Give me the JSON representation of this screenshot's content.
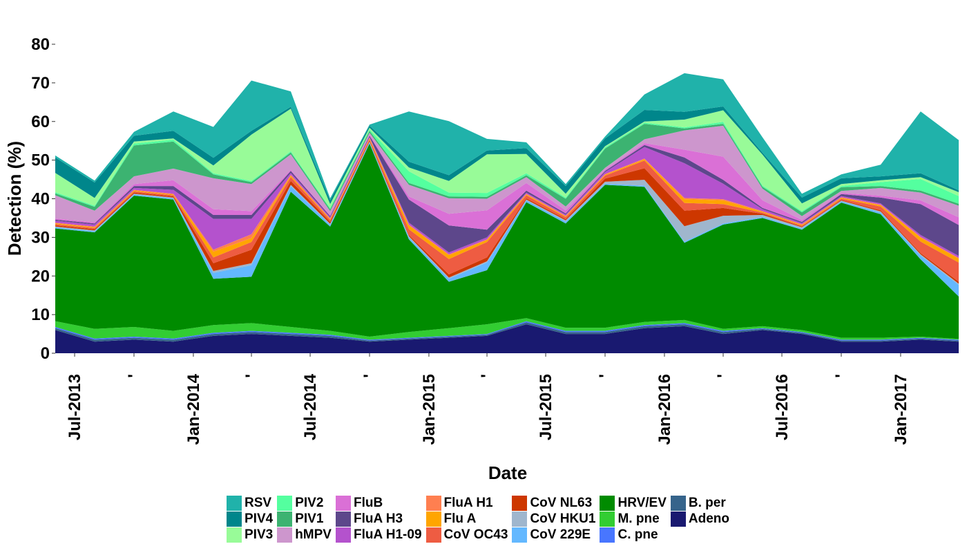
{
  "chart_data": {
    "type": "area",
    "stacked": true,
    "xlabel": "Date",
    "ylabel": "Detection (%)",
    "ylim": [
      0,
      80
    ],
    "yticks": [
      0,
      10,
      20,
      30,
      40,
      50,
      60,
      70,
      80
    ],
    "xlim": [
      "2013-06-01",
      "2017-04-01"
    ],
    "xticks": [
      {
        "date": "2013-07-01",
        "label": "Jul-2013"
      },
      {
        "date": "2013-10-01",
        "label": "'"
      },
      {
        "date": "2014-01-01",
        "label": "Jan-2014"
      },
      {
        "date": "2014-04-01",
        "label": "'"
      },
      {
        "date": "2014-07-01",
        "label": "Jul-2014"
      },
      {
        "date": "2014-10-01",
        "label": "'"
      },
      {
        "date": "2015-01-01",
        "label": "Jan-2015"
      },
      {
        "date": "2015-04-01",
        "label": "'"
      },
      {
        "date": "2015-07-01",
        "label": "Jul-2015"
      },
      {
        "date": "2015-10-01",
        "label": "'"
      },
      {
        "date": "2016-01-01",
        "label": "Jan-2016"
      },
      {
        "date": "2016-04-01",
        "label": "'"
      },
      {
        "date": "2016-07-01",
        "label": "Jul-2016"
      },
      {
        "date": "2016-10-01",
        "label": "'"
      },
      {
        "date": "2017-01-01",
        "label": "Jan-2017"
      }
    ],
    "grid": false,
    "legend_position": "bottom",
    "x": [
      "2013-06-01",
      "2013-08-01",
      "2013-10-01",
      "2013-12-01",
      "2014-02-01",
      "2014-04-01",
      "2014-06-01",
      "2014-08-01",
      "2014-10-01",
      "2014-12-01",
      "2015-02-01",
      "2015-04-01",
      "2015-06-01",
      "2015-08-01",
      "2015-10-01",
      "2015-12-01",
      "2016-02-01",
      "2016-04-01",
      "2016-06-01",
      "2016-08-01",
      "2016-10-01",
      "2016-12-01",
      "2017-02-01",
      "2017-04-01"
    ],
    "series": [
      {
        "name": "Adeno",
        "color": "#191970",
        "values": [
          6,
          3,
          3.5,
          3,
          4.5,
          5,
          4.5,
          4,
          3,
          3.5,
          4,
          4.5,
          7.5,
          5,
          5,
          6.5,
          7,
          5,
          6,
          5,
          3,
          3,
          3.5,
          3
        ]
      },
      {
        "name": "B. per",
        "color": "#36648B",
        "values": [
          0.5,
          0.5,
          0.5,
          0.5,
          0.5,
          0.5,
          0.5,
          0.5,
          0.3,
          0.3,
          0.3,
          0.3,
          0.5,
          0.5,
          0.5,
          0.5,
          0.5,
          0.5,
          0.3,
          0.3,
          0.3,
          0.3,
          0.3,
          0.3
        ]
      },
      {
        "name": "C. pne",
        "color": "#4876FF",
        "values": [
          0.3,
          0.3,
          0.3,
          0.3,
          0.3,
          0.3,
          0.3,
          0.3,
          0.2,
          0.2,
          0.2,
          0.2,
          0.3,
          0.3,
          0.3,
          0.3,
          0.3,
          0.3,
          0.2,
          0.2,
          0.2,
          0.2,
          0.2,
          0.2
        ]
      },
      {
        "name": "M. pne",
        "color": "#32CD32",
        "values": [
          1.5,
          2.5,
          2.5,
          2,
          2,
          2,
          1.5,
          1,
          0.8,
          1.5,
          2,
          2.5,
          0.8,
          0.8,
          0.8,
          0.8,
          0.8,
          0.5,
          0.5,
          0.5,
          0.5,
          0.5,
          0.3,
          0.2
        ]
      },
      {
        "name": "HRV/EV",
        "color": "#008B00",
        "values": [
          24,
          25,
          34,
          34,
          12,
          12,
          35,
          27,
          50,
          24,
          12,
          14,
          30,
          27,
          37,
          35,
          20,
          27,
          28,
          26,
          35,
          32,
          20,
          11
        ]
      },
      {
        "name": "CoV 229E",
        "color": "#63B8FF",
        "values": [
          0.3,
          0.3,
          0.3,
          0.3,
          1.5,
          3,
          1.5,
          0.5,
          0.3,
          0.5,
          0.8,
          2,
          0.5,
          0.5,
          0.3,
          0.3,
          0.3,
          0.3,
          0.3,
          0.3,
          0.3,
          0.5,
          1,
          3
        ]
      },
      {
        "name": "CoV HKU1",
        "color": "#9FB6CD",
        "values": [
          0.2,
          0.2,
          0.2,
          0.2,
          0.5,
          0.5,
          0.3,
          0.2,
          0.2,
          0.3,
          0.3,
          0.3,
          0.2,
          0.3,
          0.5,
          1.5,
          4,
          2,
          0.5,
          0.3,
          0.2,
          0.2,
          0.3,
          0.3
        ]
      },
      {
        "name": "CoV NL63",
        "color": "#CD3700",
        "values": [
          0.3,
          0.3,
          0.3,
          0.3,
          2,
          3.5,
          1,
          0.5,
          0.3,
          0.3,
          0.8,
          1,
          0.3,
          0.3,
          0.8,
          3,
          4,
          2,
          0.3,
          0.2,
          0.2,
          0.3,
          0.3,
          0.5
        ]
      },
      {
        "name": "CoV OC43",
        "color": "#EE5C42",
        "values": [
          0.3,
          0.3,
          0.3,
          0.3,
          1.5,
          2,
          1,
          0.5,
          0.3,
          1.5,
          4,
          4,
          0.8,
          0.5,
          0.8,
          2,
          2,
          1,
          0.3,
          0.2,
          0.3,
          1,
          3,
          5
        ]
      },
      {
        "name": "Flu A",
        "color": "#FFA500",
        "values": [
          0.2,
          0.2,
          0.2,
          0.2,
          1.5,
          1,
          0.3,
          0.2,
          0.2,
          1,
          1,
          0.5,
          0.2,
          0.2,
          0.2,
          0.3,
          1,
          1,
          0.2,
          0.2,
          0.2,
          0.3,
          1,
          1
        ]
      },
      {
        "name": "FluA H1",
        "color": "#FF7F50",
        "values": [
          0.2,
          0.2,
          0.2,
          0.2,
          0.5,
          1,
          0.3,
          0.2,
          0.2,
          0.2,
          0.2,
          0.2,
          0.2,
          0.2,
          0.2,
          0.2,
          0.3,
          0.3,
          0.2,
          0.2,
          0.2,
          0.2,
          0.2,
          0.2
        ]
      },
      {
        "name": "FluA H1-09",
        "color": "#B452CD",
        "values": [
          0.5,
          0.5,
          0.5,
          1,
          8,
          4,
          0.5,
          0.3,
          0.2,
          0.5,
          0.5,
          0.5,
          0.3,
          0.3,
          0.5,
          3,
          9,
          4,
          0.5,
          0.3,
          0.3,
          0.3,
          0.5,
          0.5
        ]
      },
      {
        "name": "FluA H3",
        "color": "#5D478B",
        "values": [
          0.3,
          0.3,
          0.5,
          1,
          1,
          1,
          0.5,
          0.3,
          0.3,
          6,
          7,
          2,
          0.5,
          0.3,
          0.3,
          0.5,
          1.5,
          1,
          0.3,
          0.3,
          0.5,
          1.5,
          8,
          8
        ]
      },
      {
        "name": "FluB",
        "color": "#DA70D6",
        "values": [
          0.3,
          0.3,
          0.5,
          1.5,
          1.5,
          1,
          0.3,
          0.3,
          0.3,
          0.8,
          3,
          5,
          2,
          0.8,
          0.3,
          0.5,
          2,
          6,
          2,
          0.5,
          0.3,
          0.5,
          1,
          2
        ]
      },
      {
        "name": "hMPV",
        "color": "#CD96CD",
        "values": [
          6,
          3,
          2,
          3,
          8,
          7,
          4,
          1,
          0.5,
          3,
          4,
          3,
          1.5,
          1,
          0.5,
          1,
          5,
          8,
          3,
          1,
          0.5,
          2,
          2,
          3
        ]
      },
      {
        "name": "PIV1",
        "color": "#3CB371",
        "values": [
          0.5,
          1,
          8,
          7,
          1,
          0.5,
          0.5,
          0.5,
          0.5,
          0.5,
          0.5,
          0.5,
          0.5,
          2,
          5,
          4,
          0.5,
          0.5,
          0.5,
          1,
          1,
          0.5,
          0.5,
          0.5
        ]
      },
      {
        "name": "PIV2",
        "color": "#54FF9F",
        "values": [
          0.3,
          0.3,
          0.5,
          0.5,
          0.3,
          0.3,
          0.3,
          0.3,
          0.3,
          3,
          1,
          1,
          0.5,
          0.3,
          0.3,
          0.3,
          0.3,
          0.5,
          0.3,
          0.3,
          0.3,
          1,
          3,
          2
        ]
      },
      {
        "name": "PIV3",
        "color": "#98FB98",
        "values": [
          5,
          2,
          0.5,
          0.3,
          2,
          12,
          11,
          1,
          0.5,
          1,
          3,
          10,
          5,
          1,
          0.3,
          0.3,
          2,
          3,
          8,
          2,
          0.5,
          0.5,
          0.5,
          1
        ]
      },
      {
        "name": "PIV4",
        "color": "#00868B",
        "values": [
          4,
          4,
          1.5,
          2,
          2,
          1,
          0.5,
          1,
          0.5,
          1.5,
          1.5,
          1,
          1.5,
          2,
          2,
          3,
          2,
          1,
          0.5,
          1.5,
          1.5,
          1,
          1,
          0.5
        ]
      },
      {
        "name": "RSV",
        "color": "#20B2AA",
        "values": [
          0.5,
          0.5,
          1,
          5,
          8,
          13,
          4,
          0.5,
          0.3,
          13,
          14,
          3,
          1.5,
          0.5,
          0.5,
          4,
          10,
          7,
          4,
          1,
          1,
          3,
          16,
          13
        ]
      }
    ]
  },
  "legend_rows": 3
}
